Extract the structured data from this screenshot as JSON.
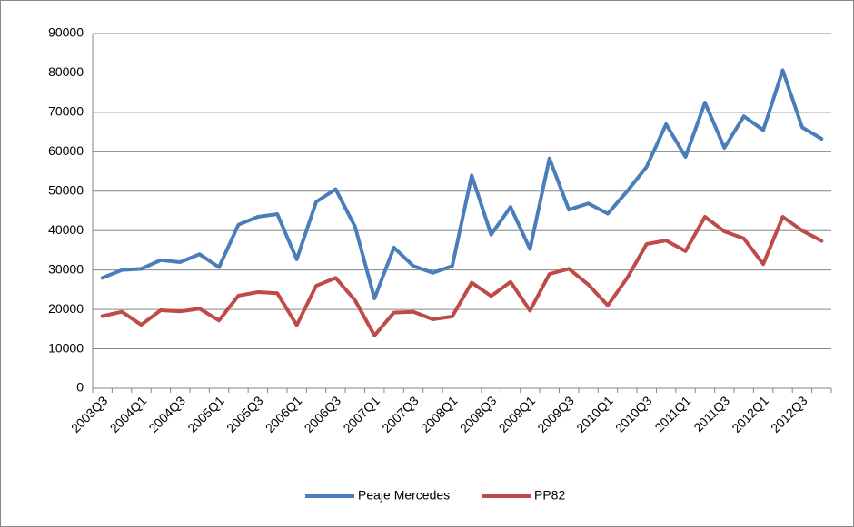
{
  "chart_data": {
    "type": "line",
    "categories": [
      "2003Q3",
      null,
      "2004Q1",
      null,
      "2004Q3",
      null,
      "2005Q1",
      null,
      "2005Q3",
      null,
      "2006Q1",
      null,
      "2006Q3",
      null,
      "2007Q1",
      null,
      "2007Q3",
      null,
      "2008Q1",
      null,
      "2008Q3",
      null,
      "2009Q1",
      null,
      "2009Q3",
      null,
      "2010Q1",
      null,
      "2010Q3",
      null,
      "2011Q1",
      null,
      "2011Q3",
      null,
      "2012Q1",
      null,
      "2012Q3",
      null
    ],
    "series": [
      {
        "name": "Peaje Mercedes",
        "color": "#4a7ebb",
        "values": [
          28000,
          30000,
          30300,
          32500,
          32000,
          34000,
          30700,
          41500,
          43500,
          44200,
          32700,
          47300,
          50500,
          41000,
          22800,
          35700,
          31000,
          29300,
          31000,
          54000,
          39000,
          46000,
          35300,
          58300,
          45300,
          46900,
          44300,
          50000,
          56200,
          67000,
          58700,
          72500,
          61000,
          69000,
          65500,
          80700,
          66200,
          63300
        ]
      },
      {
        "name": "PP82",
        "color": "#be4b48",
        "values": [
          18300,
          19400,
          16100,
          19800,
          19500,
          20200,
          17200,
          23500,
          24400,
          24100,
          16000,
          26000,
          28000,
          22300,
          13400,
          19200,
          19400,
          17500,
          18200,
          26800,
          23400,
          27000,
          19700,
          29000,
          30300,
          26300,
          21000,
          28000,
          36600,
          37500,
          34800,
          43500,
          39800,
          38000,
          31500,
          43500,
          40000,
          37400
        ]
      }
    ],
    "ylim": [
      0,
      90000
    ],
    "yticks": [
      0,
      10000,
      20000,
      30000,
      40000,
      50000,
      60000,
      70000,
      80000,
      90000
    ],
    "grid": true,
    "legend": "bottom"
  }
}
